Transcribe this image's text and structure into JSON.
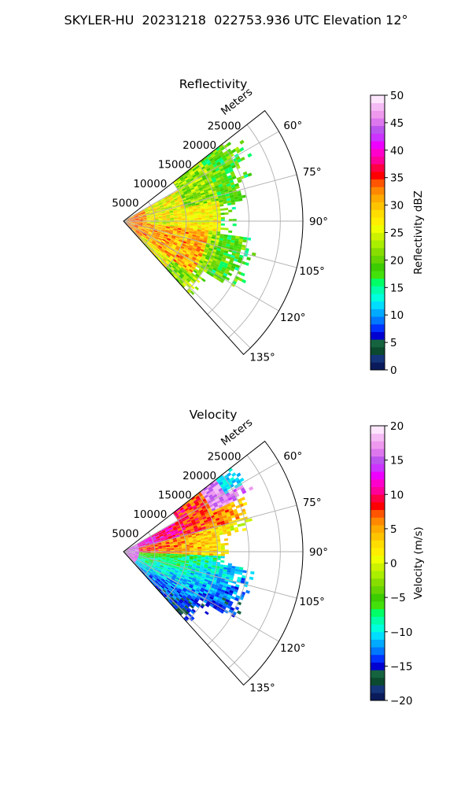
{
  "figure": {
    "title": "SKYLER-HU  20231218  022753.936 UTC Elevation 12°"
  },
  "chart_data": [
    {
      "type": "heatmap",
      "title": "Reflectivity",
      "projection": "polar-sector",
      "radial_label": "Meters",
      "radial_ticks": [
        "5000",
        "10000",
        "15000",
        "20000",
        "25000"
      ],
      "radial_tick_values": [
        5000,
        10000,
        15000,
        20000,
        25000
      ],
      "radial_max": 28600,
      "angle_ticks": [
        "60°",
        "75°",
        "90°",
        "105°",
        "120°",
        "135°"
      ],
      "angle_tick_values": [
        60,
        75,
        90,
        105,
        120,
        135
      ],
      "angle_range": [
        52,
        138
      ],
      "grid": true,
      "colorbar": {
        "label": "Reflectivity dBZ",
        "range": [
          0,
          50
        ],
        "ticks": [
          "0",
          "5",
          "10",
          "15",
          "20",
          "25",
          "30",
          "35",
          "40",
          "45",
          "50"
        ],
        "tick_values": [
          0,
          5,
          10,
          15,
          20,
          25,
          30,
          35,
          40,
          45,
          50
        ],
        "colors": [
          "#0a1b5c",
          "#14357a",
          "#0b4a2f",
          "#15633f",
          "#0000d0",
          "#0033ff",
          "#0077ff",
          "#00aaff",
          "#00ddff",
          "#00ffdd",
          "#00ffaa",
          "#00ff66",
          "#44e00c",
          "#3ccc00",
          "#66d400",
          "#88dd00",
          "#aaee00",
          "#ccf200",
          "#eeff00",
          "#ffee00",
          "#ffdd00",
          "#ffc400",
          "#ffaa00",
          "#ff8800",
          "#ff5500",
          "#ff0000",
          "#ff0044",
          "#ff0099",
          "#ff00cc",
          "#ee00ff",
          "#cc33ff",
          "#bb55ee",
          "#dd77ee",
          "#ee99ee",
          "#f5bbf5",
          "#ffe6ff"
        ]
      }
    },
    {
      "type": "heatmap",
      "title": "Velocity",
      "projection": "polar-sector",
      "radial_label": "Meters",
      "radial_ticks": [
        "5000",
        "10000",
        "15000",
        "20000",
        "25000"
      ],
      "radial_tick_values": [
        5000,
        10000,
        15000,
        20000,
        25000
      ],
      "radial_max": 28600,
      "angle_ticks": [
        "60°",
        "75°",
        "90°",
        "105°",
        "120°",
        "135°"
      ],
      "angle_tick_values": [
        60,
        75,
        90,
        105,
        120,
        135
      ],
      "angle_range": [
        52,
        138
      ],
      "grid": true,
      "colorbar": {
        "label": "Velocity (m/s)",
        "range": [
          -20,
          20
        ],
        "ticks": [
          "−20",
          "−15",
          "−10",
          "−5",
          "0",
          "5",
          "10",
          "15",
          "20"
        ],
        "tick_values": [
          -20,
          -15,
          -10,
          -5,
          0,
          5,
          10,
          15,
          20
        ],
        "colors": [
          "#0a1b5c",
          "#14357a",
          "#0b4a2f",
          "#15633f",
          "#0000d0",
          "#0033ff",
          "#0077ff",
          "#00aaff",
          "#00ddff",
          "#00ffdd",
          "#00ffaa",
          "#00ff66",
          "#44e00c",
          "#3ccc00",
          "#66d400",
          "#88dd00",
          "#aaee00",
          "#ccf200",
          "#eeff00",
          "#ffee00",
          "#ffdd00",
          "#ffc400",
          "#ffaa00",
          "#ff8800",
          "#ff5500",
          "#ff0000",
          "#ff0044",
          "#ff0099",
          "#ff00cc",
          "#ee00ff",
          "#cc33ff",
          "#bb55ee",
          "#dd77ee",
          "#ee99ee",
          "#f5bbf5",
          "#ffe6ff"
        ]
      }
    }
  ]
}
